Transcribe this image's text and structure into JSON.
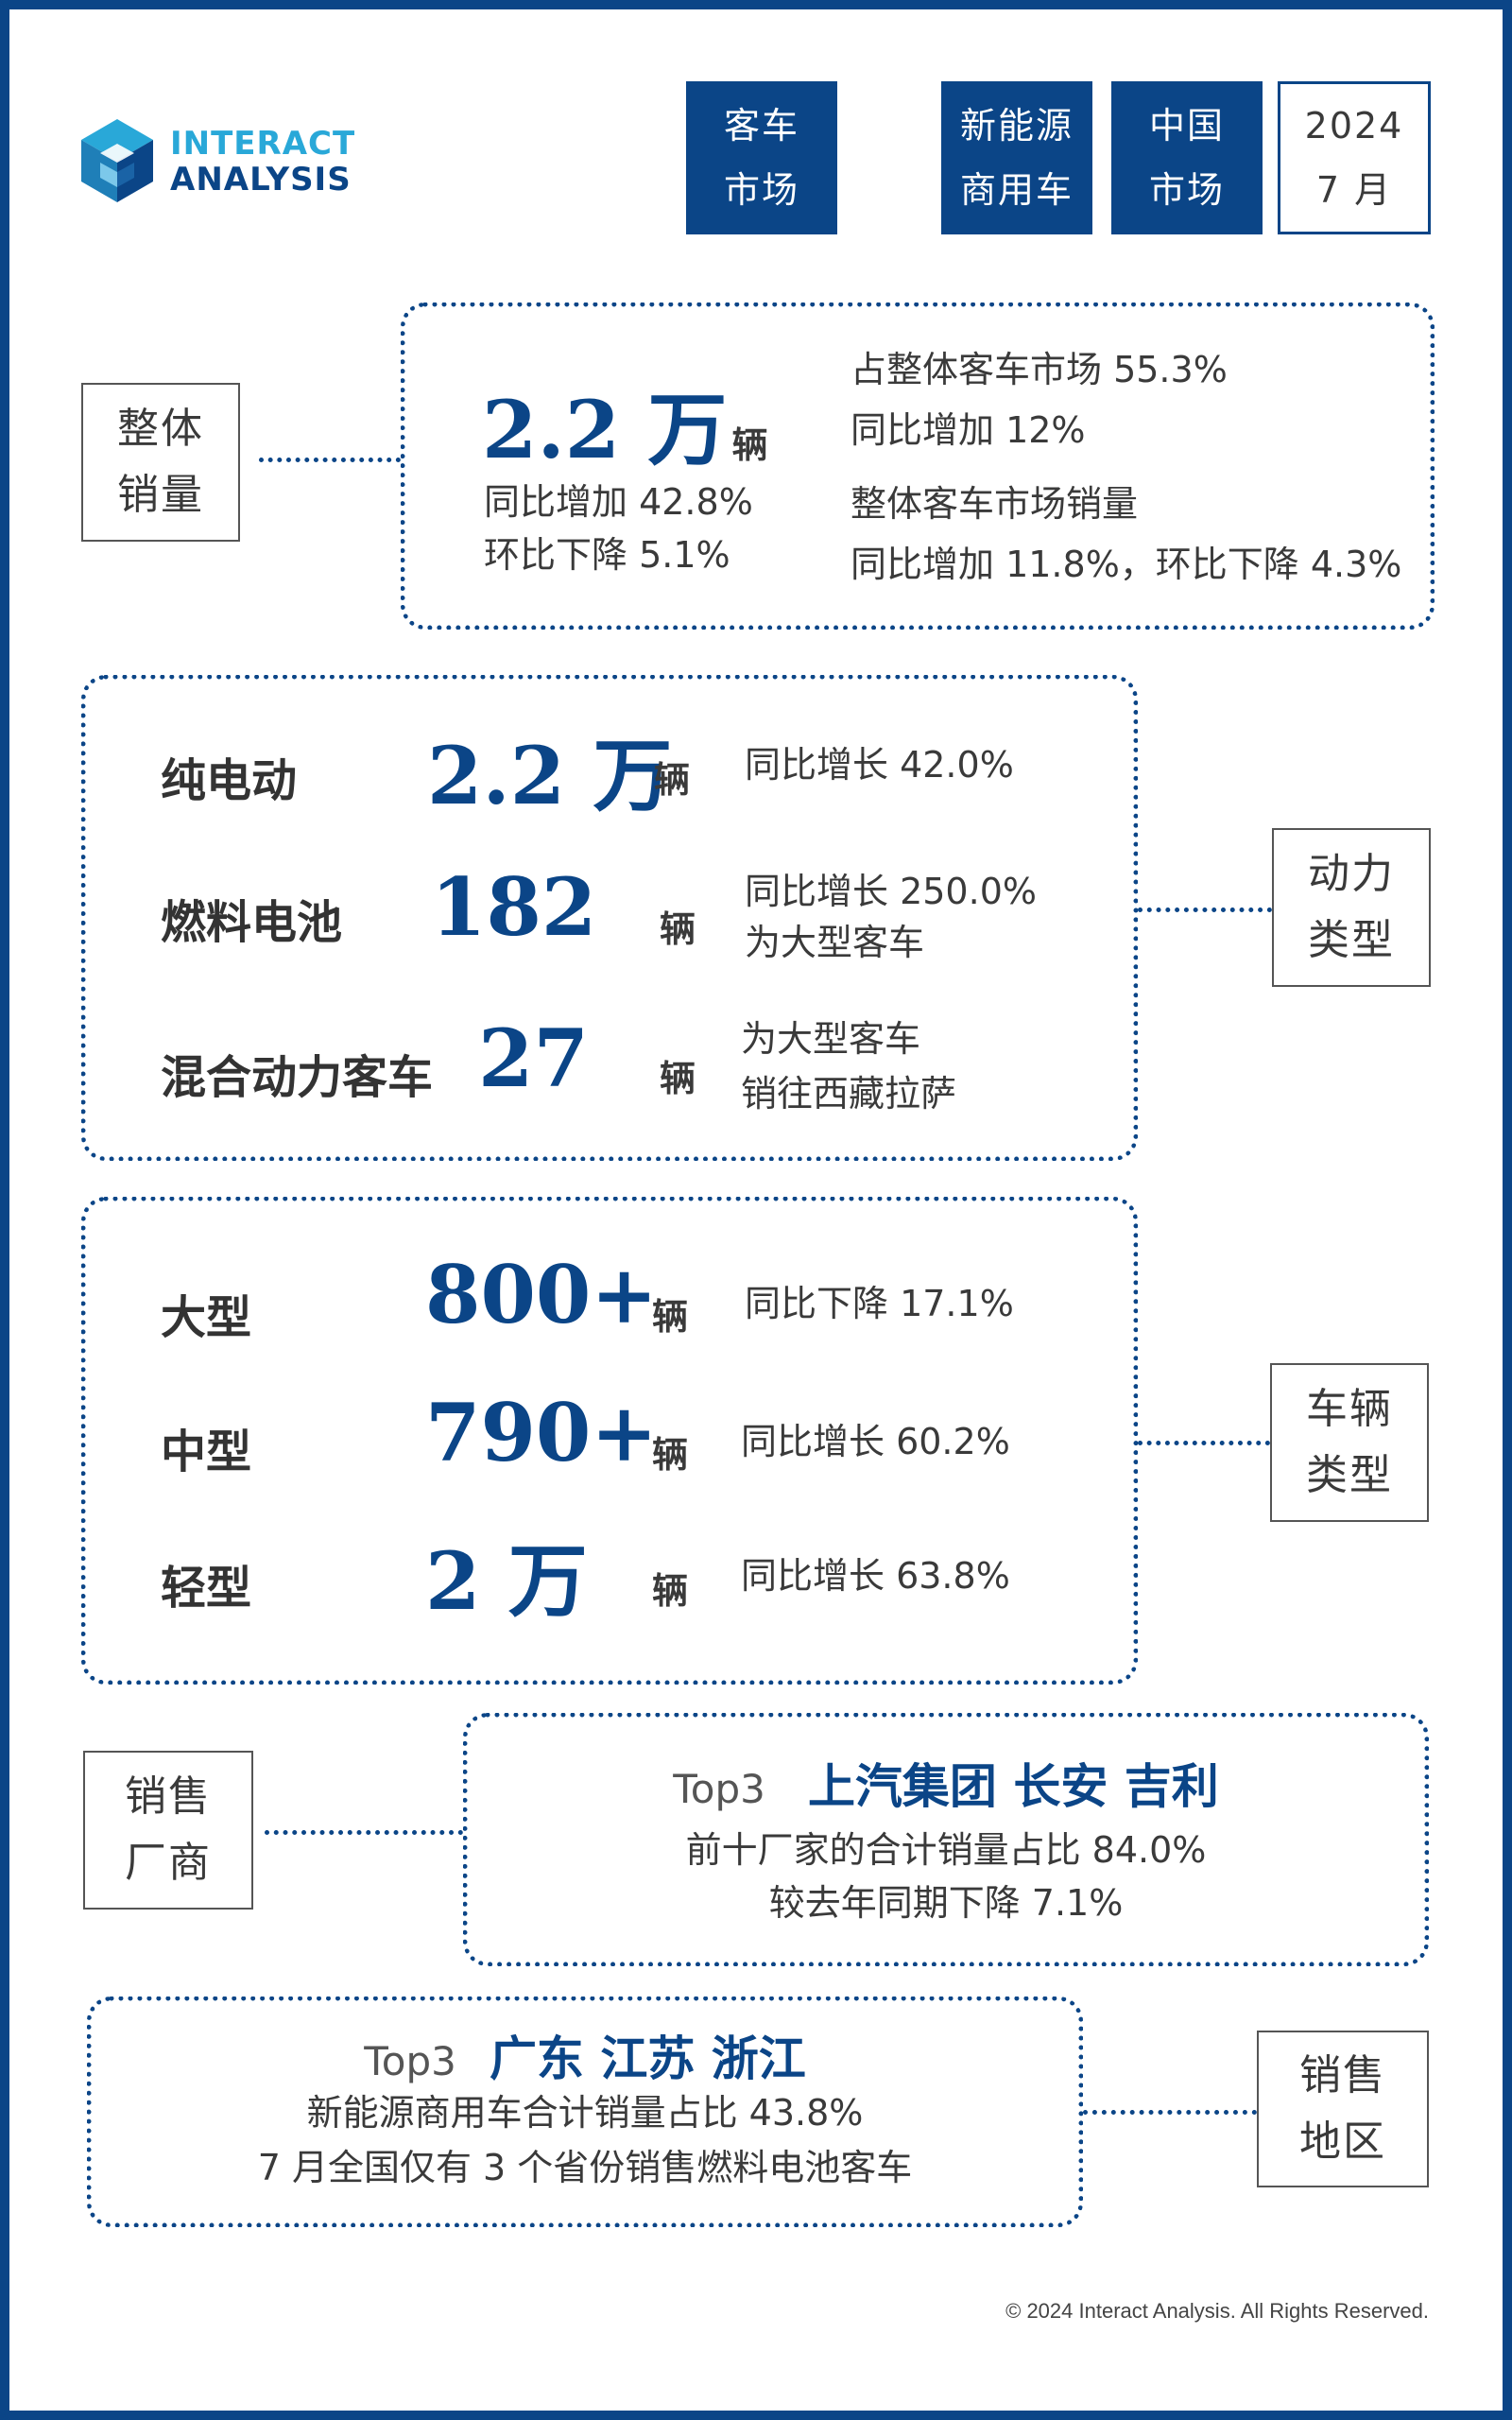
{
  "brand": {
    "line1": "INTERACT",
    "line2": "ANALYSIS",
    "color": "#0b4587",
    "accent": "#29a8d8"
  },
  "tags": [
    {
      "line1": "客车",
      "line2": "市场"
    },
    {
      "line1": "新能源",
      "line2": "商用车"
    },
    {
      "line1": "中国",
      "line2": "市场"
    },
    {
      "line1": "2024",
      "line2": "7 月"
    }
  ],
  "overall": {
    "label1": "整体",
    "label2": "销量",
    "value": "2.2 万",
    "unit": "辆",
    "yoy": "同比增加 42.8%",
    "mom": "环比下降 5.1%",
    "share": "占整体客车市场 55.3%",
    "share_yoy": "同比增加 12%",
    "market_title": "整体客车市场销量",
    "market_change": "同比增加 11.8%，环比下降 4.3%"
  },
  "power": {
    "label1": "动力",
    "label2": "类型",
    "rows": [
      {
        "name": "纯电动",
        "value": "2.2 万",
        "unit": "辆",
        "note1": "同比增长 42.0%",
        "note2": ""
      },
      {
        "name": "燃料电池",
        "value": "182",
        "unit": "辆",
        "note1": "同比增长 250.0%",
        "note2": "为大型客车"
      },
      {
        "name": "混合动力客车",
        "value": "27",
        "unit": "辆",
        "note1": "为大型客车",
        "note2": "销往西藏拉萨"
      }
    ]
  },
  "vehicle": {
    "label1": "车辆",
    "label2": "类型",
    "rows": [
      {
        "name": "大型",
        "value": "800+",
        "unit": "辆",
        "note": "同比下降 17.1%"
      },
      {
        "name": "中型",
        "value": "790+",
        "unit": "辆",
        "note": "同比增长 60.2%"
      },
      {
        "name": "轻型",
        "value": "2 万",
        "unit": "辆",
        "note": "同比增长 63.8%"
      }
    ]
  },
  "makers": {
    "label1": "销售",
    "label2": "厂商",
    "top_label": "Top3",
    "top_names": "上汽集团 长安 吉利",
    "line1": "前十厂家的合计销量占比 84.0%",
    "line2": "较去年同期下降 7.1%"
  },
  "regions": {
    "label1": "销售",
    "label2": "地区",
    "top_label": "Top3",
    "top_names": "广东 江苏 浙江",
    "line1": "新能源商用车合计销量占比 43.8%",
    "line2": "7 月全国仅有 3 个省份销售燃料电池客车"
  },
  "footer": {
    "copyright": "© 2024 Interact Analysis. All Rights Reserved."
  }
}
